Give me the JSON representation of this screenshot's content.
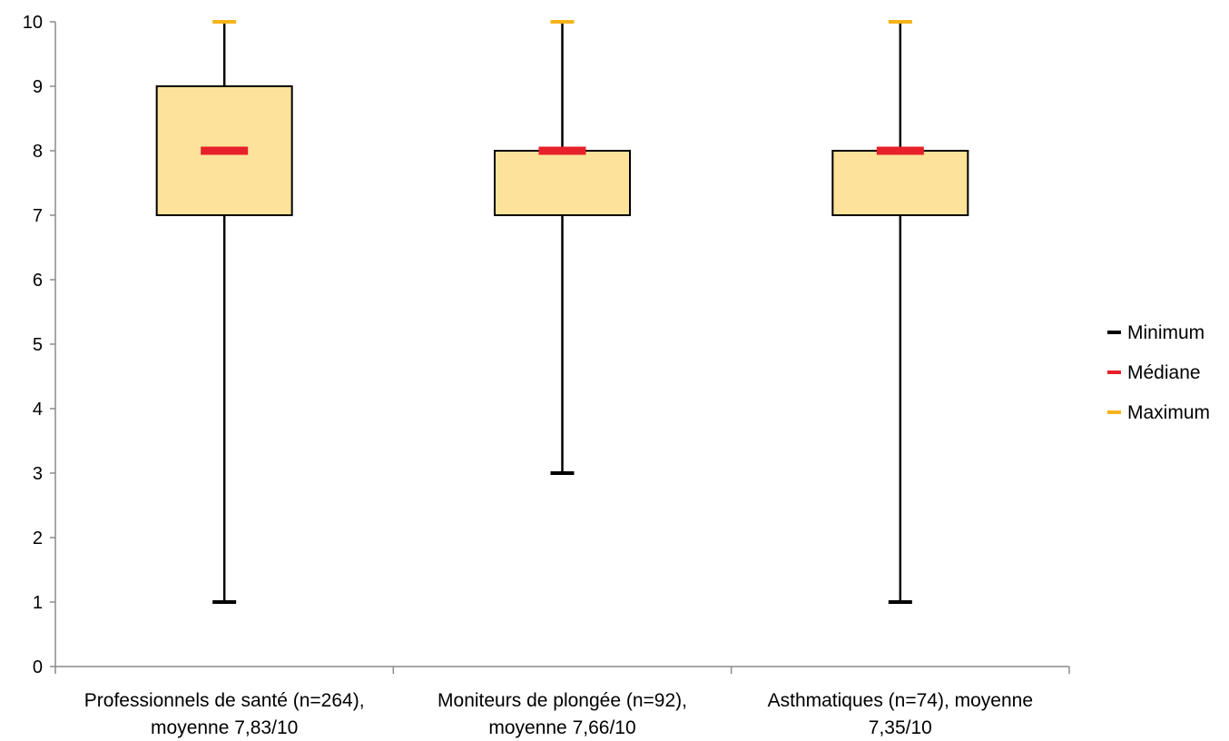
{
  "chart_data": {
    "type": "box",
    "title": "",
    "xlabel": "",
    "ylabel": "",
    "ylim": [
      0,
      10
    ],
    "yticks": [
      0,
      1,
      2,
      3,
      4,
      5,
      6,
      7,
      8,
      9,
      10
    ],
    "grid": false,
    "legend_position": "right",
    "colors": {
      "box_fill": "#FDE29A",
      "box_stroke": "#000000",
      "whisker": "#000000",
      "minimum": "#000000",
      "median": "#E8202A",
      "maximum": "#F5B21B"
    },
    "legend": [
      {
        "label": "Minimum",
        "color": "#000000"
      },
      {
        "label": "Médiane",
        "color": "#E8202A"
      },
      {
        "label": "Maximum",
        "color": "#F5B21B"
      }
    ],
    "categories": [
      {
        "label_lines": [
          "Professionnels de santé (n=264),",
          "moyenne 7,83/10"
        ],
        "min": 1,
        "q1": 7,
        "median": 8,
        "q3": 9,
        "max": 10
      },
      {
        "label_lines": [
          "Moniteurs de plongée (n=92),",
          "moyenne 7,66/10"
        ],
        "min": 3,
        "q1": 7,
        "median": 8,
        "q3": 8,
        "max": 10
      },
      {
        "label_lines": [
          "Asthmatiques (n=74), moyenne",
          "7,35/10"
        ],
        "min": 1,
        "q1": 7,
        "median": 8,
        "q3": 8,
        "max": 10
      }
    ]
  }
}
